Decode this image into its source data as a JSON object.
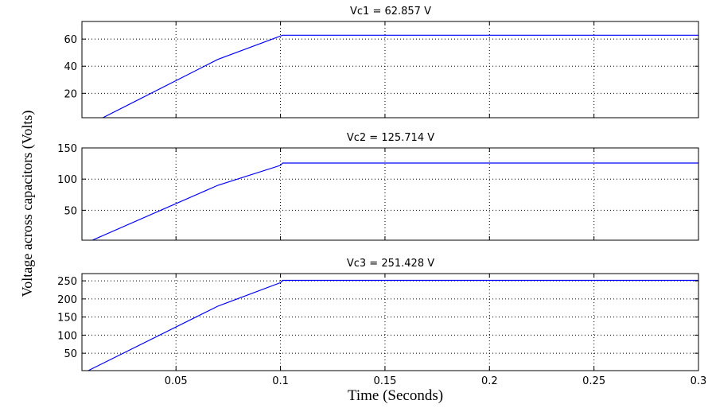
{
  "figure": {
    "ylabel": "Voltage across capacitors (Volts)",
    "xlabel": "Time (Seconds)"
  },
  "chart_data": [
    {
      "type": "line",
      "title": "Vc1 = 62.857 V",
      "xlim": [
        0.005,
        0.3
      ],
      "ylim": [
        2,
        73
      ],
      "xticks": [
        0.05,
        0.1,
        0.15,
        0.2,
        0.25,
        0.3
      ],
      "xticklabels": [
        "",
        "",
        "",
        "",
        "",
        ""
      ],
      "yticks": [
        20,
        40,
        60
      ],
      "yticklabels": [
        "20",
        "40",
        "60"
      ],
      "grid": true,
      "line_color": "#0000ff",
      "series": [
        {
          "x": [
            0.015,
            0.07,
            0.101,
            0.101,
            0.3
          ],
          "y": [
            2,
            45,
            62.857,
            62.857,
            62.857
          ]
        }
      ]
    },
    {
      "type": "line",
      "title": "Vc2 = 125.714 V",
      "xlim": [
        0.005,
        0.3
      ],
      "ylim": [
        2,
        150
      ],
      "xticks": [
        0.05,
        0.1,
        0.15,
        0.2,
        0.25,
        0.3
      ],
      "xticklabels": [
        "",
        "",
        "",
        "",
        "",
        ""
      ],
      "yticks": [
        50,
        100,
        150
      ],
      "yticklabels": [
        "50",
        "100",
        "150"
      ],
      "grid": true,
      "line_color": "#0000ff",
      "series": [
        {
          "x": [
            0.01,
            0.07,
            0.1,
            0.101,
            0.3
          ],
          "y": [
            2,
            90,
            122,
            125.714,
            125.714
          ]
        }
      ]
    },
    {
      "type": "line",
      "title": "Vc3 = 251.428 V",
      "xlim": [
        0.005,
        0.3
      ],
      "ylim": [
        2,
        270
      ],
      "xticks": [
        0.05,
        0.1,
        0.15,
        0.2,
        0.25,
        0.3
      ],
      "xticklabels": [
        "0.05",
        "0.1",
        "0.15",
        "0.2",
        "0.25",
        "0.3"
      ],
      "yticks": [
        50,
        100,
        150,
        200,
        250
      ],
      "yticklabels": [
        "50",
        "100",
        "150",
        "200",
        "250"
      ],
      "grid": true,
      "line_color": "#0000ff",
      "series": [
        {
          "x": [
            0.008,
            0.07,
            0.1,
            0.101,
            0.3
          ],
          "y": [
            2,
            180,
            245,
            251.428,
            251.428
          ]
        }
      ]
    }
  ]
}
